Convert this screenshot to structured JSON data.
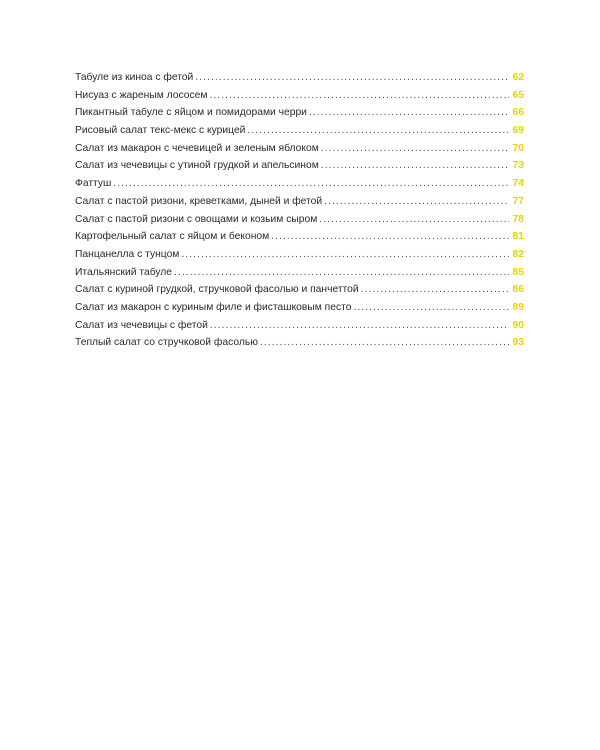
{
  "accent_color": "#e6d400",
  "entries": [
    {
      "title": "Табуле из киноа с фетой",
      "page": "62"
    },
    {
      "title": "Нисуаз с жареным лососем",
      "page": "65"
    },
    {
      "title": "Пикантный табуле с яйцом и помидорами черри",
      "page": "66"
    },
    {
      "title": "Рисовый салат текс-мекс с курицей",
      "page": "69"
    },
    {
      "title": "Салат из макарон с чечевицей и зеленым яблоком",
      "page": "70"
    },
    {
      "title": "Салат из чечевицы с утиной грудкой и апельсином",
      "page": "73"
    },
    {
      "title": "Фаттуш",
      "page": "74"
    },
    {
      "title": "Салат с пастой ризони, креветками, дыней и фетой",
      "page": "77"
    },
    {
      "title": "Салат с пастой ризони с овощами и козьим сыром",
      "page": "78"
    },
    {
      "title": "Картофельный салат с яйцом и беконом",
      "page": "81"
    },
    {
      "title": "Панцанелла с тунцом",
      "page": "82"
    },
    {
      "title": "Итальянский табуле",
      "page": "85"
    },
    {
      "title": "Салат с куриной грудкой, стручковой фасолью и панчеттой",
      "page": "86"
    },
    {
      "title": "Салат из макарон с куриным филе и фисташковым песто",
      "page": "89"
    },
    {
      "title": "Салат из чечевицы с фетой",
      "page": "90"
    },
    {
      "title": "Теплый салат со стручковой фасолью",
      "page": "93"
    }
  ]
}
